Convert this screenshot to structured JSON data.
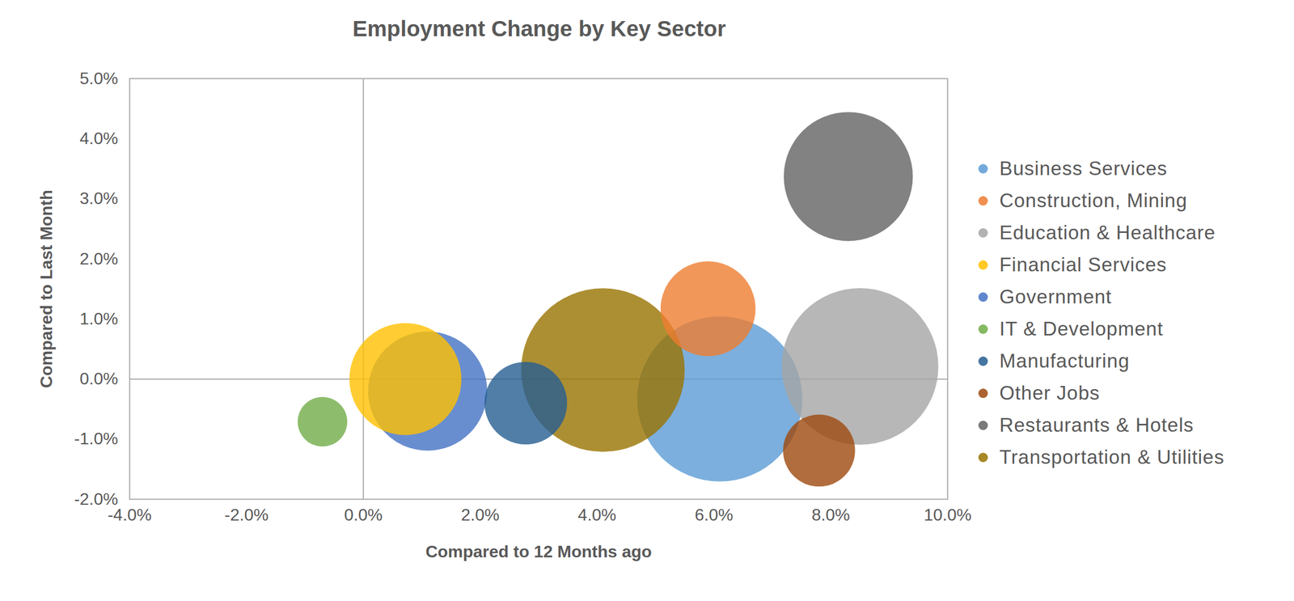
{
  "chart_data": {
    "type": "bubble",
    "title": "Employment Change by Key Sector",
    "x_label": "Compared to 12 Months ago",
    "y_label": "Compared to Last Month",
    "xlim": [
      -4,
      10
    ],
    "xticks": [
      {
        "value": -4,
        "label": "-4.0%"
      },
      {
        "value": -2,
        "label": "-2.0%"
      },
      {
        "value": 0,
        "label": "0.0%"
      },
      {
        "value": 2,
        "label": "2.0%"
      },
      {
        "value": 4,
        "label": "4.0%"
      },
      {
        "value": 6,
        "label": "6.0%"
      },
      {
        "value": 8,
        "label": "8.0%"
      },
      {
        "value": 10,
        "label": "10.0%"
      }
    ],
    "ylim": [
      -2,
      5
    ],
    "yticks": [
      {
        "value": -2,
        "label": "-2.0%"
      },
      {
        "value": -1,
        "label": "-1.0%"
      },
      {
        "value": 0,
        "label": "0.0%"
      },
      {
        "value": 1,
        "label": "1.0%"
      },
      {
        "value": 2,
        "label": "2.0%"
      },
      {
        "value": 3,
        "label": "3.0%"
      },
      {
        "value": 4,
        "label": "4.0%"
      },
      {
        "value": 5,
        "label": "5.0%"
      }
    ],
    "grid": false,
    "legend": "right",
    "series": [
      {
        "name": "Business Services",
        "color": "#5B9BD5",
        "x": [
          6.1
        ],
        "values": [
          -0.33
        ],
        "sizes": [
          100
        ]
      },
      {
        "name": "Construction, Mining",
        "color": "#ED7D31",
        "x": [
          5.9
        ],
        "values": [
          1.17
        ],
        "sizes": [
          33
        ]
      },
      {
        "name": "Education & Healthcare",
        "color": "#A5A5A5",
        "x": [
          8.5
        ],
        "values": [
          0.21
        ],
        "sizes": [
          90
        ]
      },
      {
        "name": "Financial Services",
        "color": "#FFC000",
        "x": [
          0.72
        ],
        "values": [
          0.0
        ],
        "sizes": [
          46
        ]
      },
      {
        "name": "Government",
        "color": "#4472C4",
        "x": [
          1.1
        ],
        "values": [
          -0.2
        ],
        "sizes": [
          52
        ]
      },
      {
        "name": "IT & Development",
        "color": "#70AD47",
        "x": [
          -0.7
        ],
        "values": [
          -0.71
        ],
        "sizes": [
          9
        ]
      },
      {
        "name": "Manufacturing",
        "color": "#255E91",
        "x": [
          2.78
        ],
        "values": [
          -0.4
        ],
        "sizes": [
          25
        ]
      },
      {
        "name": "Other Jobs",
        "color": "#9E480E",
        "x": [
          7.8
        ],
        "values": [
          -1.19
        ],
        "sizes": [
          19
        ]
      },
      {
        "name": "Restaurants & Hotels",
        "color": "#636363",
        "x": [
          8.3
        ],
        "values": [
          3.37
        ],
        "sizes": [
          61
        ]
      },
      {
        "name": "Transportation & Utilities",
        "color": "#997300",
        "x": [
          4.1
        ],
        "values": [
          0.15
        ],
        "sizes": [
          98
        ]
      }
    ]
  }
}
